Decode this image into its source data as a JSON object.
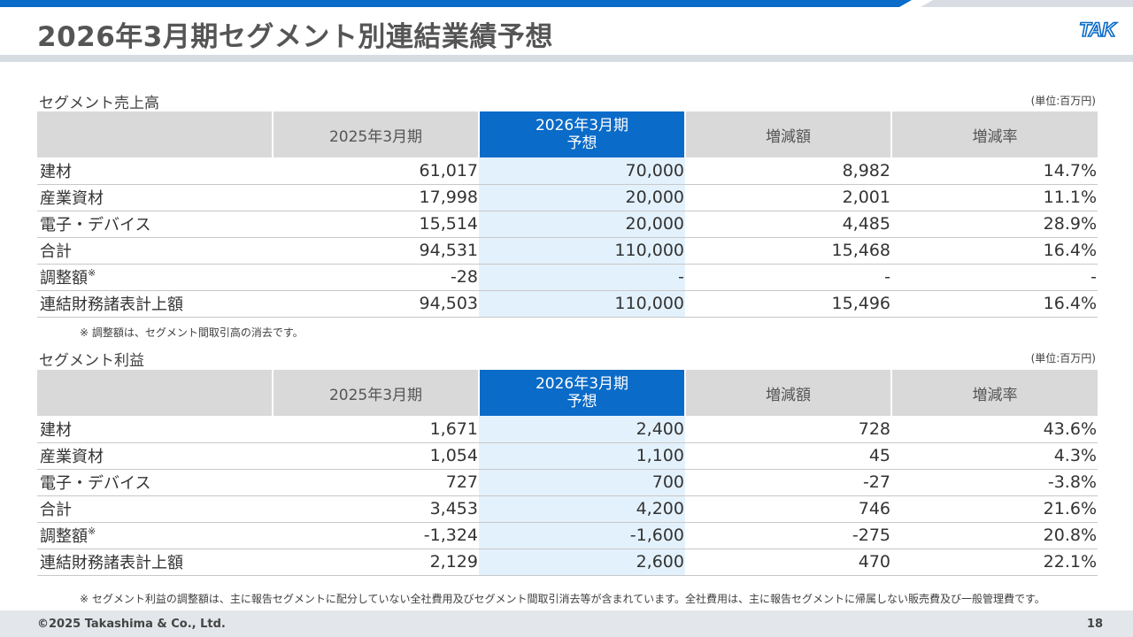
{
  "header": {
    "title": "2026年3月期セグメント別連結業績予想",
    "logo_text": "TAK"
  },
  "sales": {
    "title": "セグメント売上高",
    "unit": "(単位:百万円)",
    "columns": [
      "",
      "2025年3月期",
      "2026年3月期",
      "予想",
      "増減額",
      "増減率"
    ],
    "rows": [
      {
        "label": "建材",
        "sup": "",
        "prev": "61,017",
        "fcst": "70,000",
        "diff": "8,982",
        "rate": "14.7%"
      },
      {
        "label": "産業資材",
        "sup": "",
        "prev": "17,998",
        "fcst": "20,000",
        "diff": "2,001",
        "rate": "11.1%"
      },
      {
        "label": "電子・デバイス",
        "sup": "",
        "prev": "15,514",
        "fcst": "20,000",
        "diff": "4,485",
        "rate": "28.9%"
      },
      {
        "label": "合計",
        "sup": "",
        "prev": "94,531",
        "fcst": "110,000",
        "diff": "15,468",
        "rate": "16.4%"
      },
      {
        "label": "調整額",
        "sup": "※",
        "prev": "-28",
        "fcst": "-",
        "diff": "-",
        "rate": "-"
      },
      {
        "label": "連結財務諸表計上額",
        "sup": "",
        "prev": "94,503",
        "fcst": "110,000",
        "diff": "15,496",
        "rate": "16.4%"
      }
    ],
    "note": "※ 調整額は、セグメント間取引高の消去です。"
  },
  "profit": {
    "title": "セグメント利益",
    "unit": "(単位:百万円)",
    "columns": [
      "",
      "2025年3月期",
      "2026年3月期",
      "予想",
      "増減額",
      "増減率"
    ],
    "rows": [
      {
        "label": "建材",
        "sup": "",
        "prev": "1,671",
        "fcst": "2,400",
        "diff": "728",
        "rate": "43.6%"
      },
      {
        "label": "産業資材",
        "sup": "",
        "prev": "1,054",
        "fcst": "1,100",
        "diff": "45",
        "rate": "4.3%"
      },
      {
        "label": "電子・デバイス",
        "sup": "",
        "prev": "727",
        "fcst": "700",
        "diff": "-27",
        "rate": "-3.8%"
      },
      {
        "label": "合計",
        "sup": "",
        "prev": "3,453",
        "fcst": "4,200",
        "diff": "746",
        "rate": "21.6%"
      },
      {
        "label": "調整額",
        "sup": "※",
        "prev": "-1,324",
        "fcst": "-1,600",
        "diff": "-275",
        "rate": "20.8%"
      },
      {
        "label": "連結財務諸表計上額",
        "sup": "",
        "prev": "2,129",
        "fcst": "2,600",
        "diff": "470",
        "rate": "22.1%"
      }
    ],
    "note": "※ セグメント利益の調整額は、主に報告セグメントに配分していない全社費用及びセグメント間取引消去等が含まれています。全社費用は、主に報告セグメントに帰属しない販売費及び一般管理費です。"
  },
  "footer": {
    "copyright": "©2025 Takashima & Co., Ltd.",
    "page_number": "18"
  },
  "colors": {
    "accent": "#0a6bc8",
    "highlight_column": "#e3f1fc",
    "header_grey": "#d9d9d9"
  }
}
